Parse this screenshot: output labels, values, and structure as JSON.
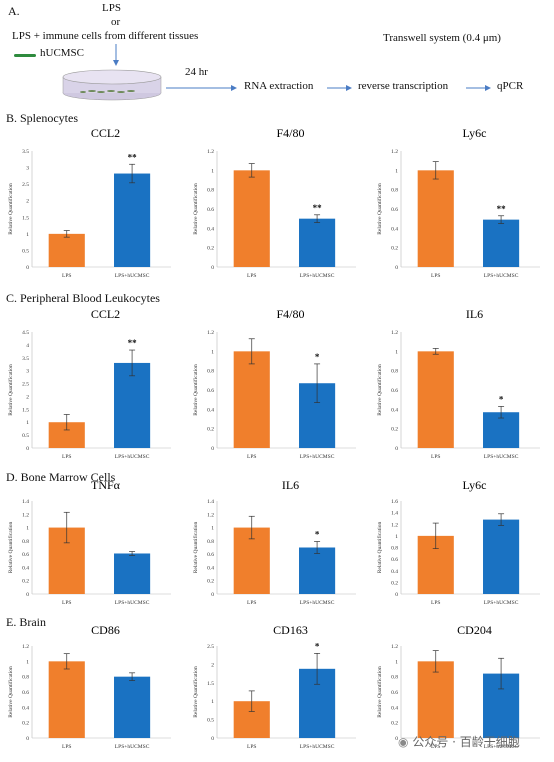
{
  "schematic": {
    "section_label": "A.",
    "lps": "LPS",
    "or": "or",
    "lps_immune": "LPS + immune cells from different tissues",
    "hucmsc": "hUCMSC",
    "transwell": "Transwell system (0.4 μm)",
    "time": "24 hr",
    "rna": "RNA extraction",
    "rt": "reverse transcription",
    "qpcr": "qPCR",
    "colors": {
      "dish": "#d9d3e8",
      "cells": "#2e8b3e",
      "arrow": "#4a7cc4"
    }
  },
  "sections": [
    {
      "label": "B. Splenocytes"
    },
    {
      "label": "C. Peripheral Blood Leukocytes"
    },
    {
      "label": "D. Bone Marrow Cells"
    },
    {
      "label": "E. Brain"
    }
  ],
  "colors": {
    "lps": "#f07f2c",
    "treated": "#1a72c2"
  },
  "watermark": "公众号 · 百龄干细胞",
  "chart_data": [
    {
      "type": "bar",
      "title": "CCL2",
      "ylabel": "Relative Quantification",
      "categories": [
        "LPS",
        "LPS+hUCMSC"
      ],
      "values": [
        1.0,
        2.82
      ],
      "errors": [
        0.1,
        0.28
      ],
      "sig": [
        "",
        "**"
      ],
      "ylim": [
        0,
        3.5
      ],
      "yticks": [
        "0",
        "0.5",
        "1",
        "1.5",
        "2",
        "2.5",
        "3",
        "3.5"
      ]
    },
    {
      "type": "bar",
      "title": "F4/80",
      "ylabel": "Relative Quantification",
      "categories": [
        "LPS",
        "LPS+hUCMSC"
      ],
      "values": [
        1.0,
        0.5
      ],
      "errors": [
        0.07,
        0.04
      ],
      "sig": [
        "",
        "**"
      ],
      "ylim": [
        0,
        1.2
      ],
      "yticks": [
        "0",
        "0.2",
        "0.4",
        "0.6",
        "0.8",
        "1",
        "1.2"
      ]
    },
    {
      "type": "bar",
      "title": "Ly6c",
      "ylabel": "Relative Quantification",
      "categories": [
        "LPS",
        "LPS+hUCMSC"
      ],
      "values": [
        1.0,
        0.49
      ],
      "errors": [
        0.09,
        0.04
      ],
      "sig": [
        "",
        "**"
      ],
      "ylim": [
        0,
        1.2
      ],
      "yticks": [
        "0",
        "0.2",
        "0.4",
        "0.6",
        "0.8",
        "1",
        "1.2"
      ]
    },
    {
      "type": "bar",
      "title": "CCL2",
      "ylabel": "Relative Quantification",
      "categories": [
        "LPS",
        "LPS+hUCMSC"
      ],
      "values": [
        1.0,
        3.3
      ],
      "errors": [
        0.3,
        0.5
      ],
      "sig": [
        "",
        "**"
      ],
      "ylim": [
        0,
        4.5
      ],
      "yticks": [
        "0",
        "0.5",
        "1",
        "1.5",
        "2",
        "2.5",
        "3",
        "3.5",
        "4",
        "4.5"
      ]
    },
    {
      "type": "bar",
      "title": "F4/80",
      "ylabel": "Relative Quantification",
      "categories": [
        "LPS",
        "LPS+hUCMSC"
      ],
      "values": [
        1.0,
        0.67
      ],
      "errors": [
        0.13,
        0.2
      ],
      "sig": [
        "",
        "*"
      ],
      "ylim": [
        0,
        1.2
      ],
      "yticks": [
        "0",
        "0.2",
        "0.4",
        "0.6",
        "0.8",
        "1",
        "1.2"
      ]
    },
    {
      "type": "bar",
      "title": "IL6",
      "ylabel": "Relative Quantification",
      "categories": [
        "LPS",
        "LPS+hUCMSC"
      ],
      "values": [
        1.0,
        0.37
      ],
      "errors": [
        0.03,
        0.06
      ],
      "sig": [
        "",
        "*"
      ],
      "ylim": [
        0,
        1.2
      ],
      "yticks": [
        "0",
        "0.2",
        "0.4",
        "0.6",
        "0.8",
        "1",
        "1.2"
      ]
    },
    {
      "type": "bar",
      "title": "TNFα",
      "ylabel": "Relative Quantification",
      "categories": [
        "LPS",
        "LPS+hUCMSC"
      ],
      "values": [
        1.0,
        0.61
      ],
      "errors": [
        0.23,
        0.03
      ],
      "sig": [
        "",
        ""
      ],
      "ylim": [
        0,
        1.4
      ],
      "yticks": [
        "0",
        "0.2",
        "0.4",
        "0.6",
        "0.8",
        "1",
        "1.2",
        "1.4"
      ]
    },
    {
      "type": "bar",
      "title": "IL6",
      "ylabel": "Relative Quantification",
      "categories": [
        "LPS",
        "LPS+hUCMSC"
      ],
      "values": [
        1.0,
        0.7
      ],
      "errors": [
        0.17,
        0.09
      ],
      "sig": [
        "",
        "*"
      ],
      "ylim": [
        0,
        1.4
      ],
      "yticks": [
        "0",
        "0.2",
        "0.4",
        "0.6",
        "0.8",
        "1",
        "1.2",
        "1.4"
      ]
    },
    {
      "type": "bar",
      "title": "Ly6c",
      "ylabel": "Relative Quantification",
      "categories": [
        "LPS",
        "LPS+hUCMSC"
      ],
      "values": [
        1.0,
        1.28
      ],
      "errors": [
        0.22,
        0.1
      ],
      "sig": [
        "",
        ""
      ],
      "ylim": [
        0,
        1.6
      ],
      "yticks": [
        "0",
        "0.2",
        "0.4",
        "0.6",
        "0.8",
        "1",
        "1.2",
        "1.4",
        "1.6"
      ]
    },
    {
      "type": "bar",
      "title": "CD86",
      "ylabel": "Relative Quantification",
      "categories": [
        "LPS",
        "LPS+hUCMSC"
      ],
      "values": [
        1.0,
        0.8
      ],
      "errors": [
        0.1,
        0.05
      ],
      "sig": [
        "",
        ""
      ],
      "ylim": [
        0,
        1.2
      ],
      "yticks": [
        "0",
        "0.2",
        "0.4",
        "0.6",
        "0.8",
        "1",
        "1.2"
      ]
    },
    {
      "type": "bar",
      "title": "CD163",
      "ylabel": "Relative Quantification",
      "categories": [
        "LPS",
        "LPS+hUCMSC"
      ],
      "values": [
        1.0,
        1.88
      ],
      "errors": [
        0.28,
        0.42
      ],
      "sig": [
        "",
        "*"
      ],
      "ylim": [
        0,
        2.5
      ],
      "yticks": [
        "0",
        "0.5",
        "1",
        "1.5",
        "2",
        "2.5"
      ]
    },
    {
      "type": "bar",
      "title": "CD204",
      "ylabel": "Relative Quantification",
      "categories": [
        "LPS",
        "LPS+hUCMSC"
      ],
      "values": [
        1.0,
        0.84
      ],
      "errors": [
        0.14,
        0.2
      ],
      "sig": [
        "",
        ""
      ],
      "ylim": [
        0,
        1.2
      ],
      "yticks": [
        "0",
        "0.2",
        "0.4",
        "0.6",
        "0.8",
        "1",
        "1.2"
      ]
    }
  ]
}
